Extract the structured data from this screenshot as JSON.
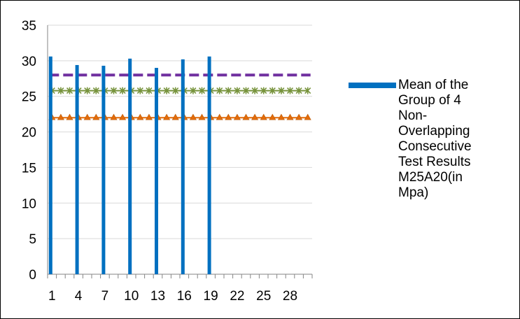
{
  "chart_data": {
    "type": "bar",
    "ylim": [
      0,
      35
    ],
    "yticks": [
      "0",
      "5",
      "10",
      "15",
      "20",
      "25",
      "30",
      "35"
    ],
    "x_count": 30,
    "xtick_labels": [
      "1",
      "4",
      "7",
      "10",
      "13",
      "16",
      "19",
      "22",
      "25",
      "28"
    ],
    "xtick_positions": [
      1,
      4,
      7,
      10,
      13,
      16,
      19,
      22,
      25,
      28
    ],
    "grid": "horizontal",
    "legend_position": "right",
    "series": [
      {
        "name": "Mean of the Group of 4 Non-Overlapping Consecutive Test Results M25A20(in Mpa)",
        "kind": "bar",
        "color": "#0070c0",
        "x": [
          1,
          4,
          7,
          10,
          13,
          16,
          19,
          22,
          25,
          28
        ],
        "values": [
          30.6,
          29.4,
          29.3,
          30.3,
          29.0,
          30.2,
          30.6,
          0,
          0,
          0
        ]
      },
      {
        "kind": "dashed-line",
        "color": "#7030a0",
        "values": [
          28,
          28,
          28,
          28,
          28,
          28,
          28,
          28,
          28,
          28,
          28,
          28,
          28,
          28,
          28,
          28,
          28,
          28,
          28,
          28,
          28,
          28,
          28,
          28,
          28,
          28,
          28,
          28,
          28,
          28
        ]
      },
      {
        "kind": "star-marker-line",
        "color": "#77933c",
        "values": [
          25.8,
          25.8,
          25.8,
          25.8,
          25.8,
          25.8,
          25.8,
          25.8,
          25.8,
          25.8,
          25.8,
          25.8,
          25.8,
          25.8,
          25.8,
          25.8,
          25.8,
          25.8,
          25.8,
          25.8,
          25.8,
          25.8,
          25.8,
          25.8,
          25.8,
          25.8,
          25.8,
          25.8,
          25.8,
          25.8
        ]
      },
      {
        "kind": "triangle-marker-line",
        "color": "#e46c0a",
        "values": [
          22,
          22,
          22,
          22,
          22,
          22,
          22,
          22,
          22,
          22,
          22,
          22,
          22,
          22,
          22,
          22,
          22,
          22,
          22,
          22,
          22,
          22,
          22,
          22,
          22,
          22,
          22,
          22,
          22,
          22
        ]
      }
    ]
  },
  "legend": {
    "label": "Mean of the Group of 4 Non-Overlapping Consecutive Test Results M25A20(in Mpa)",
    "lines": [
      "Mean of the",
      "Group of 4",
      "Non-",
      "Overlapping",
      "Consecutive",
      "Test Results",
      "M25A20(in",
      "Mpa)"
    ]
  }
}
